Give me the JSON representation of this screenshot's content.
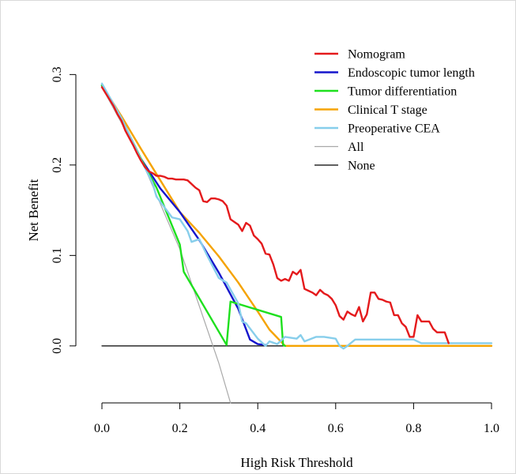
{
  "chart_data": {
    "type": "line",
    "title": "",
    "xlabel": "High Risk Threshold",
    "ylabel": "Net Benefit",
    "xlim": [
      0,
      1
    ],
    "ylim": [
      -0.07,
      0.33
    ],
    "x_ticks": [
      "0.0",
      "0.2",
      "0.4",
      "0.6",
      "0.8",
      "1.0"
    ],
    "x_tick_values": [
      0,
      0.2,
      0.4,
      0.6,
      0.8,
      1.0
    ],
    "y_ticks": [
      "0.0",
      "0.1",
      "0.2",
      "0.3"
    ],
    "y_tick_values": [
      0,
      0.1,
      0.2,
      0.3
    ],
    "grid": false,
    "legend_position": "top-right",
    "series": [
      {
        "name": "Nomogram",
        "color": "#e41a1c",
        "x": [
          0,
          0.02,
          0.03,
          0.04,
          0.05,
          0.06,
          0.07,
          0.08,
          0.09,
          0.1,
          0.11,
          0.12,
          0.13,
          0.14,
          0.15,
          0.16,
          0.17,
          0.18,
          0.19,
          0.2,
          0.21,
          0.22,
          0.23,
          0.24,
          0.25,
          0.26,
          0.27,
          0.28,
          0.29,
          0.3,
          0.31,
          0.32,
          0.33,
          0.34,
          0.35,
          0.36,
          0.37,
          0.38,
          0.39,
          0.4,
          0.41,
          0.42,
          0.43,
          0.44,
          0.45,
          0.46,
          0.47,
          0.48,
          0.49,
          0.5,
          0.51,
          0.52,
          0.53,
          0.54,
          0.55,
          0.56,
          0.57,
          0.58,
          0.59,
          0.6,
          0.61,
          0.62,
          0.63,
          0.64,
          0.65,
          0.66,
          0.67,
          0.68,
          0.69,
          0.7,
          0.71,
          0.72,
          0.73,
          0.74,
          0.75,
          0.76,
          0.77,
          0.78,
          0.79,
          0.8,
          0.81,
          0.82,
          0.83,
          0.84,
          0.85,
          0.86,
          0.87,
          0.88,
          0.89
        ],
        "y": [
          0.286,
          0.272,
          0.265,
          0.256,
          0.249,
          0.238,
          0.23,
          0.222,
          0.213,
          0.205,
          0.198,
          0.193,
          0.191,
          0.188,
          0.188,
          0.187,
          0.185,
          0.185,
          0.184,
          0.184,
          0.184,
          0.183,
          0.179,
          0.175,
          0.172,
          0.16,
          0.159,
          0.163,
          0.163,
          0.162,
          0.16,
          0.155,
          0.14,
          0.137,
          0.134,
          0.127,
          0.136,
          0.133,
          0.122,
          0.118,
          0.113,
          0.102,
          0.101,
          0.09,
          0.075,
          0.072,
          0.074,
          0.072,
          0.082,
          0.079,
          0.084,
          0.063,
          0.061,
          0.059,
          0.056,
          0.062,
          0.058,
          0.056,
          0.052,
          0.045,
          0.033,
          0.029,
          0.038,
          0.035,
          0.033,
          0.043,
          0.027,
          0.035,
          0.059,
          0.059,
          0.052,
          0.051,
          0.049,
          0.048,
          0.034,
          0.034,
          0.025,
          0.021,
          0.01,
          0.01,
          0.034,
          0.027,
          0.027,
          0.027,
          0.019,
          0.015,
          0.015,
          0.015,
          0.003
        ]
      },
      {
        "name": "Endoscopic tumor length",
        "color": "#1515cc",
        "x": [
          0,
          0.05,
          0.1,
          0.15,
          0.2,
          0.25,
          0.3,
          0.35,
          0.38,
          0.4,
          0.42
        ],
        "y": [
          0.288,
          0.251,
          0.207,
          0.174,
          0.148,
          0.117,
          0.081,
          0.041,
          0.007,
          0.002,
          0.001
        ]
      },
      {
        "name": "Tumor differentiation",
        "color": "#1ee01e",
        "x": [
          0,
          0.05,
          0.1,
          0.14,
          0.2,
          0.21,
          0.32,
          0.33,
          0.46,
          0.465,
          0.47
        ],
        "y": [
          0.288,
          0.251,
          0.207,
          0.175,
          0.112,
          0.082,
          0.001,
          0.049,
          0.032,
          0.001,
          0.0
        ]
      },
      {
        "name": "Clinical T stage",
        "color": "#f5a300",
        "x": [
          0,
          0.05,
          0.1,
          0.15,
          0.2,
          0.25,
          0.3,
          0.35,
          0.4,
          0.43,
          0.47,
          1.0
        ],
        "y": [
          0.288,
          0.254,
          0.218,
          0.183,
          0.148,
          0.125,
          0.099,
          0.07,
          0.038,
          0.018,
          0.0,
          0.0
        ]
      },
      {
        "name": "Preoperative CEA",
        "color": "#87ceeb",
        "x": [
          0,
          0.05,
          0.1,
          0.13,
          0.14,
          0.18,
          0.2,
          0.22,
          0.23,
          0.25,
          0.27,
          0.3,
          0.32,
          0.35,
          0.36,
          0.37,
          0.4,
          0.42,
          0.43,
          0.45,
          0.47,
          0.5,
          0.51,
          0.52,
          0.55,
          0.57,
          0.6,
          0.61,
          0.62,
          0.63,
          0.65,
          0.7,
          0.75,
          0.8,
          0.82,
          0.85,
          0.9,
          1.0
        ],
        "y": [
          0.29,
          0.252,
          0.206,
          0.18,
          0.165,
          0.142,
          0.14,
          0.127,
          0.115,
          0.118,
          0.1,
          0.075,
          0.07,
          0.047,
          0.027,
          0.025,
          0.008,
          0.0,
          0.005,
          0.002,
          0.01,
          0.008,
          0.012,
          0.005,
          0.01,
          0.01,
          0.008,
          0.0,
          -0.003,
          0.0,
          0.007,
          0.007,
          0.007,
          0.007,
          0.003,
          0.003,
          0.003,
          0.003
        ]
      },
      {
        "name": "All",
        "color": "#a9a9a9",
        "x": [
          0,
          0.1,
          0.2,
          0.3,
          0.33
        ],
        "y": [
          0.286,
          0.207,
          0.107,
          -0.019,
          -0.063
        ]
      },
      {
        "name": "None",
        "color": "#000000",
        "x": [
          0,
          1.0
        ],
        "y": [
          0,
          0
        ]
      }
    ]
  }
}
